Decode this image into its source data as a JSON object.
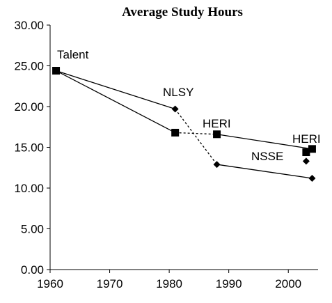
{
  "chart_data": {
    "type": "line",
    "title": "Average Study Hours",
    "xlabel": "",
    "ylabel": "",
    "xlim": [
      1960,
      2005
    ],
    "ylim": [
      0,
      30
    ],
    "x_ticks": [
      "1960",
      "1970",
      "1980",
      "1990",
      "2000"
    ],
    "y_ticks": [
      "0.00",
      "5.00",
      "10.00",
      "15.00",
      "20.00",
      "25.00",
      "30.00"
    ],
    "grid": false,
    "legend": "none",
    "series": [
      {
        "marker": "square",
        "color": "#000000",
        "points": [
          {
            "x": 1961,
            "y": 24.4
          },
          {
            "x": 1981,
            "y": 16.8
          },
          {
            "x": 1988,
            "y": 16.6
          },
          {
            "x": 2004,
            "y": 14.8
          }
        ]
      },
      {
        "marker": "diamond",
        "color": "#000000",
        "points": [
          {
            "x": 1961,
            "y": 24.4
          },
          {
            "x": 1981,
            "y": 19.7
          },
          {
            "x": 1988,
            "y": 12.9
          },
          {
            "x": 2004,
            "y": 11.2
          }
        ]
      }
    ],
    "extra_markers": [
      {
        "x": 2003,
        "y": 14.4,
        "marker": "square"
      },
      {
        "x": 2003,
        "y": 13.3,
        "marker": "diamond"
      }
    ],
    "dashed_links": [
      {
        "from": {
          "x": 1981,
          "y": 16.8
        },
        "to": {
          "x": 1988,
          "y": 16.6
        }
      },
      {
        "from": {
          "x": 1981,
          "y": 19.7
        },
        "to": {
          "x": 1988,
          "y": 12.9
        }
      }
    ],
    "solid_segments": [
      {
        "from": {
          "x": 1961,
          "y": 24.4
        },
        "to": {
          "x": 1981,
          "y": 16.8
        }
      },
      {
        "from": {
          "x": 1988,
          "y": 16.6
        },
        "to": {
          "x": 2004,
          "y": 14.8
        }
      },
      {
        "from": {
          "x": 1961,
          "y": 24.4
        },
        "to": {
          "x": 1981,
          "y": 19.7
        }
      },
      {
        "from": {
          "x": 1988,
          "y": 12.9
        },
        "to": {
          "x": 2004,
          "y": 11.2
        }
      }
    ],
    "annotations": [
      {
        "text": "Talent"
      },
      {
        "text": "NLSY"
      },
      {
        "text": "HERI"
      },
      {
        "text": "HERI"
      },
      {
        "text": "NSSE"
      }
    ]
  }
}
